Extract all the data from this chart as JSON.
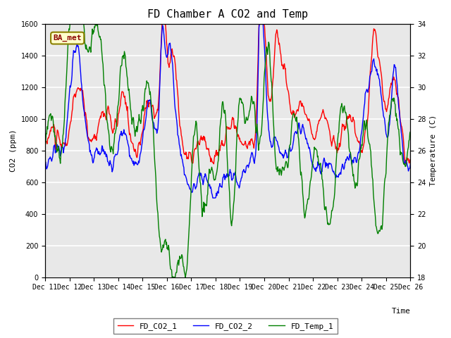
{
  "title": "FD Chamber A CO2 and Temp",
  "xlabel": "Time",
  "ylabel_left": "CO2 (ppm)",
  "ylabel_right": "Temperature (C)",
  "left_ylim": [
    0,
    1600
  ],
  "right_ylim": [
    18,
    34
  ],
  "left_yticks": [
    0,
    200,
    400,
    600,
    800,
    1000,
    1200,
    1400,
    1600
  ],
  "right_yticks": [
    18,
    20,
    22,
    24,
    26,
    28,
    30,
    32,
    34
  ],
  "xtick_labels": [
    "Dec 11",
    "Dec 12",
    "Dec 13",
    "Dec 14",
    "Dec 15",
    "Dec 16",
    "Dec 17",
    "Dec 18",
    "Dec 19",
    "Dec 20",
    "Dec 21",
    "Dec 22",
    "Dec 23",
    "Dec 24",
    "Dec 25",
    "Dec 26"
  ],
  "legend_labels": [
    "FD_CO2_1",
    "FD_CO2_2",
    "FD_Temp_1"
  ],
  "colors": [
    "red",
    "blue",
    "green"
  ],
  "linewidths": [
    1.0,
    1.0,
    1.0
  ],
  "annotation_text": "BA_met",
  "plot_bg_color": "#e8e8e8",
  "grid_color": "white",
  "title_fontsize": 11,
  "axis_fontsize": 8,
  "tick_fontsize": 7,
  "legend_fontsize": 8,
  "font_family": "monospace"
}
